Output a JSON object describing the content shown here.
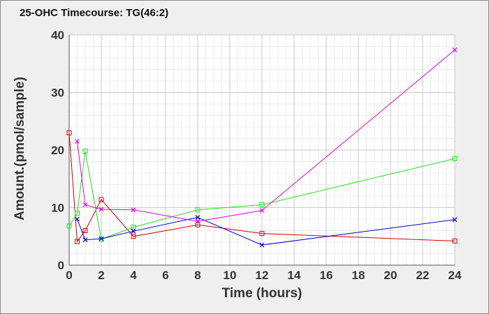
{
  "chart_data": {
    "type": "line",
    "title": "25-OHC Timecourse: TG(46:2)",
    "xlabel": "Time (hours)",
    "ylabel": "Amount.(pmol/sample)",
    "xlim": [
      0,
      24
    ],
    "ylim": [
      0,
      40
    ],
    "x_ticks": [
      0,
      2,
      4,
      6,
      8,
      10,
      12,
      14,
      16,
      18,
      20,
      22,
      24
    ],
    "y_ticks": [
      0,
      10,
      20,
      30,
      40
    ],
    "grid": true,
    "legend": "none",
    "series": [
      {
        "color": "#d00000",
        "marker": "square",
        "x": [
          0,
          0.5,
          1,
          2,
          4,
          8,
          12,
          24
        ],
        "y": [
          23.0,
          4.1,
          6.0,
          11.4,
          5.0,
          7.0,
          5.5,
          4.2
        ]
      },
      {
        "color": "#22dd22",
        "marker": "square",
        "x": [
          0,
          0.5,
          1,
          2,
          4,
          8,
          12,
          24
        ],
        "y": [
          6.8,
          9.0,
          19.8,
          4.5,
          6.6,
          9.6,
          10.5,
          18.5
        ]
      },
      {
        "color": "#0000cc",
        "marker": "x",
        "x": [
          0.5,
          1,
          2,
          4,
          8,
          12,
          24
        ],
        "y": [
          8.0,
          4.4,
          4.6,
          5.9,
          8.3,
          3.5,
          7.9
        ]
      },
      {
        "color": "#dd00dd",
        "marker": "x",
        "x": [
          0.5,
          1,
          2,
          4,
          8,
          12,
          24
        ],
        "y": [
          21.5,
          10.5,
          9.7,
          9.6,
          7.6,
          9.5,
          37.4
        ]
      }
    ]
  }
}
